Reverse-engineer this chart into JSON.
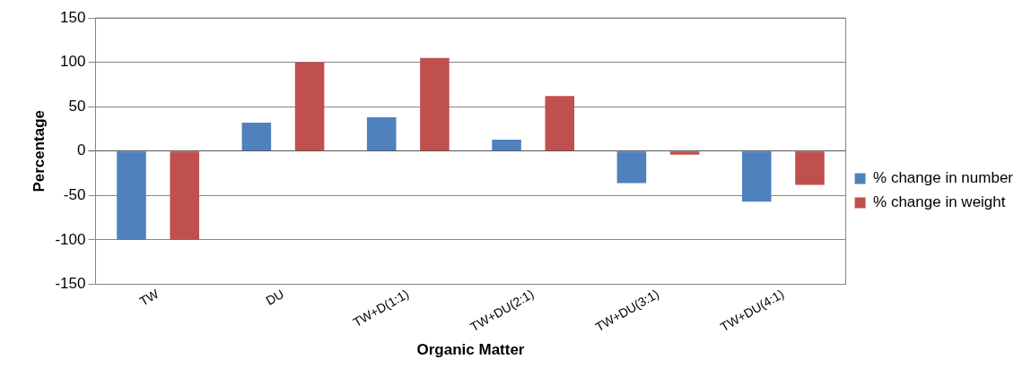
{
  "chart_data": {
    "type": "bar",
    "xlabel": "Organic Matter",
    "ylabel": "Percentage",
    "categories": [
      "TW",
      "DU",
      "TW+D(1:1)",
      "TW+DU(2:1)",
      "TW+DU(3:1)",
      "TW+DU(4:1)"
    ],
    "series": [
      {
        "name": "% change in number",
        "color": "#4f81bd",
        "values": [
          -100,
          32,
          38,
          13,
          -36,
          -57
        ]
      },
      {
        "name": "% change in weight",
        "color": "#c0504d",
        "values": [
          -100,
          100,
          105,
          62,
          -4,
          -38
        ]
      }
    ],
    "ylim": [
      -150,
      150
    ],
    "yticks": [
      -150,
      -100,
      -50,
      0,
      50,
      100,
      150
    ],
    "grid": "y",
    "legend": "right"
  }
}
